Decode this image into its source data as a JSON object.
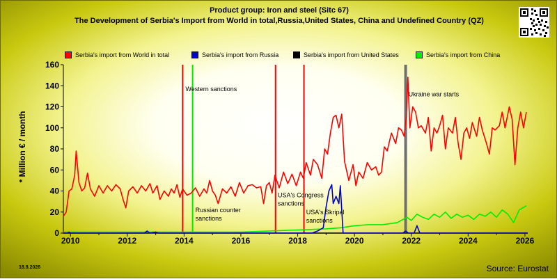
{
  "header": {
    "title_line1": "Product group: Iron and steel (Sitc 67)",
    "title_line2": "The Development of Serbia's Import from World in total,Russia,United States, China and Undefined Country (QZ)"
  },
  "footer": {
    "date": "18.8.2026",
    "source": "Source: Eurostat"
  },
  "qr_icon": "qr-code-icon",
  "chart_data": {
    "type": "line",
    "title": "The Development of Serbia's Import from World in total,Russia,United States, China and Undefined Country (QZ)",
    "xlabel": "",
    "ylabel": "* Million € / month",
    "xlim": [
      2009.75,
      2026.1
    ],
    "ylim": [
      0,
      160
    ],
    "x_ticks": [
      "2010",
      "2012",
      "2014",
      "2016",
      "2018",
      "2020",
      "2022",
      "2024",
      "2026"
    ],
    "y_ticks": [
      "0",
      "20",
      "40",
      "60",
      "80",
      "100",
      "120",
      "140",
      "160"
    ],
    "grid": false,
    "legend_position": "top",
    "series": [
      {
        "name": "Serbia's import from World in total",
        "color": "#ff0000",
        "points": [
          [
            2009.75,
            16
          ],
          [
            2009.85,
            20
          ],
          [
            2009.95,
            40
          ],
          [
            2010.05,
            42
          ],
          [
            2010.15,
            55
          ],
          [
            2010.2,
            78
          ],
          [
            2010.3,
            48
          ],
          [
            2010.4,
            40
          ],
          [
            2010.5,
            43
          ],
          [
            2010.6,
            57
          ],
          [
            2010.7,
            42
          ],
          [
            2010.85,
            35
          ],
          [
            2011.0,
            45
          ],
          [
            2011.15,
            38
          ],
          [
            2011.3,
            45
          ],
          [
            2011.45,
            40
          ],
          [
            2011.6,
            46
          ],
          [
            2011.75,
            42
          ],
          [
            2011.85,
            32
          ],
          [
            2011.95,
            24
          ],
          [
            2012.05,
            40
          ],
          [
            2012.2,
            44
          ],
          [
            2012.35,
            38
          ],
          [
            2012.5,
            45
          ],
          [
            2012.65,
            40
          ],
          [
            2012.8,
            47
          ],
          [
            2012.9,
            38
          ],
          [
            2013.05,
            45
          ],
          [
            2013.15,
            32
          ],
          [
            2013.3,
            40
          ],
          [
            2013.45,
            35
          ],
          [
            2013.55,
            42
          ],
          [
            2013.65,
            38
          ],
          [
            2013.75,
            46
          ],
          [
            2013.85,
            34
          ],
          [
            2013.95,
            42
          ],
          [
            2014.1,
            36
          ],
          [
            2014.25,
            38
          ],
          [
            2014.4,
            43
          ],
          [
            2014.55,
            35
          ],
          [
            2014.7,
            42
          ],
          [
            2014.8,
            38
          ],
          [
            2014.9,
            50
          ],
          [
            2015.0,
            40
          ],
          [
            2015.1,
            36
          ],
          [
            2015.2,
            28
          ],
          [
            2015.35,
            42
          ],
          [
            2015.5,
            38
          ],
          [
            2015.65,
            44
          ],
          [
            2015.8,
            35
          ],
          [
            2015.95,
            48
          ],
          [
            2016.1,
            38
          ],
          [
            2016.25,
            45
          ],
          [
            2016.4,
            46
          ],
          [
            2016.55,
            43
          ],
          [
            2016.7,
            44
          ],
          [
            2016.8,
            28
          ],
          [
            2016.9,
            45
          ],
          [
            2017.0,
            48
          ],
          [
            2017.1,
            38
          ],
          [
            2017.2,
            55
          ],
          [
            2017.35,
            43
          ],
          [
            2017.5,
            58
          ],
          [
            2017.65,
            47
          ],
          [
            2017.8,
            56
          ],
          [
            2017.95,
            45
          ],
          [
            2018.1,
            58
          ],
          [
            2018.2,
            52
          ],
          [
            2018.3,
            67
          ],
          [
            2018.45,
            55
          ],
          [
            2018.55,
            70
          ],
          [
            2018.7,
            65
          ],
          [
            2018.85,
            52
          ],
          [
            2018.95,
            80
          ],
          [
            2019.05,
            75
          ],
          [
            2019.15,
            95
          ],
          [
            2019.25,
            110
          ],
          [
            2019.35,
            112
          ],
          [
            2019.45,
            100
          ],
          [
            2019.55,
            113
          ],
          [
            2019.65,
            68
          ],
          [
            2019.8,
            50
          ],
          [
            2019.95,
            65
          ],
          [
            2020.05,
            45
          ],
          [
            2020.15,
            58
          ],
          [
            2020.3,
            52
          ],
          [
            2020.45,
            67
          ],
          [
            2020.6,
            60
          ],
          [
            2020.75,
            63
          ],
          [
            2020.85,
            55
          ],
          [
            2020.95,
            58
          ],
          [
            2021.05,
            82
          ],
          [
            2021.15,
            78
          ],
          [
            2021.3,
            95
          ],
          [
            2021.45,
            85
          ],
          [
            2021.55,
            100
          ],
          [
            2021.65,
            98
          ],
          [
            2021.75,
            92
          ],
          [
            2021.82,
            110
          ],
          [
            2021.88,
            148
          ],
          [
            2021.95,
            100
          ],
          [
            2022.05,
            120
          ],
          [
            2022.15,
            115
          ],
          [
            2022.25,
            100
          ],
          [
            2022.35,
            102
          ],
          [
            2022.5,
            95
          ],
          [
            2022.6,
            110
          ],
          [
            2022.7,
            78
          ],
          [
            2022.8,
            100
          ],
          [
            2022.9,
            95
          ],
          [
            2023.0,
            102
          ],
          [
            2023.1,
            112
          ],
          [
            2023.2,
            80
          ],
          [
            2023.3,
            100
          ],
          [
            2023.45,
            95
          ],
          [
            2023.55,
            110
          ],
          [
            2023.65,
            85
          ],
          [
            2023.75,
            70
          ],
          [
            2023.85,
            95
          ],
          [
            2023.95,
            100
          ],
          [
            2024.05,
            90
          ],
          [
            2024.15,
            105
          ],
          [
            2024.3,
            92
          ],
          [
            2024.4,
            110
          ],
          [
            2024.5,
            98
          ],
          [
            2024.65,
            85
          ],
          [
            2024.75,
            75
          ],
          [
            2024.85,
            100
          ],
          [
            2024.95,
            98
          ],
          [
            2025.1,
            102
          ],
          [
            2025.2,
            115
          ],
          [
            2025.3,
            100
          ],
          [
            2025.45,
            120
          ],
          [
            2025.55,
            108
          ],
          [
            2025.65,
            65
          ],
          [
            2025.75,
            100
          ],
          [
            2025.85,
            115
          ],
          [
            2025.95,
            100
          ],
          [
            2026.05,
            115
          ]
        ]
      },
      {
        "name": "Serbia's import from Russia",
        "color": "#0000cc",
        "points": [
          [
            2009.75,
            0
          ],
          [
            2009.9,
            0
          ],
          [
            2009.95,
            1
          ],
          [
            2010.0,
            0
          ],
          [
            2012.6,
            0
          ],
          [
            2012.7,
            2
          ],
          [
            2012.8,
            0
          ],
          [
            2013.0,
            1
          ],
          [
            2013.1,
            0
          ],
          [
            2018.5,
            0
          ],
          [
            2018.7,
            2
          ],
          [
            2018.9,
            5
          ],
          [
            2019.0,
            25
          ],
          [
            2019.1,
            40
          ],
          [
            2019.2,
            46
          ],
          [
            2019.25,
            28
          ],
          [
            2019.35,
            35
          ],
          [
            2019.45,
            28
          ],
          [
            2019.5,
            45
          ],
          [
            2019.6,
            0
          ],
          [
            2021.7,
            0
          ],
          [
            2021.8,
            2
          ],
          [
            2021.9,
            0
          ],
          [
            2022.1,
            0
          ],
          [
            2022.2,
            7
          ],
          [
            2022.3,
            0
          ],
          [
            2026.1,
            0
          ]
        ]
      },
      {
        "name": "Serbia's import from United States",
        "color": "#000000",
        "points": [
          [
            2009.75,
            0
          ],
          [
            2026.1,
            0
          ]
        ]
      },
      {
        "name": "Serbia's import from China",
        "color": "#00ee00",
        "points": [
          [
            2009.75,
            1
          ],
          [
            2011.0,
            1
          ],
          [
            2012.5,
            1
          ],
          [
            2014.0,
            1
          ],
          [
            2016.0,
            1
          ],
          [
            2017.0,
            2
          ],
          [
            2018.0,
            3
          ],
          [
            2019.0,
            4
          ],
          [
            2019.5,
            5
          ],
          [
            2020.0,
            7
          ],
          [
            2020.5,
            8
          ],
          [
            2021.0,
            8
          ],
          [
            2021.5,
            10
          ],
          [
            2021.85,
            15
          ],
          [
            2022.0,
            12
          ],
          [
            2022.2,
            18
          ],
          [
            2022.4,
            15
          ],
          [
            2022.6,
            13
          ],
          [
            2022.8,
            18
          ],
          [
            2023.0,
            15
          ],
          [
            2023.2,
            20
          ],
          [
            2023.4,
            14
          ],
          [
            2023.6,
            18
          ],
          [
            2023.8,
            15
          ],
          [
            2024.0,
            17
          ],
          [
            2024.2,
            13
          ],
          [
            2024.4,
            18
          ],
          [
            2024.6,
            16
          ],
          [
            2024.8,
            20
          ],
          [
            2025.0,
            15
          ],
          [
            2025.2,
            22
          ],
          [
            2025.4,
            18
          ],
          [
            2025.6,
            10
          ],
          [
            2025.8,
            22
          ],
          [
            2026.05,
            26
          ]
        ]
      }
    ],
    "vertical_markers": [
      {
        "x": 2013.95,
        "color": "#ff0000",
        "label": ""
      },
      {
        "x": 2014.3,
        "color": "#00ee00",
        "label": ""
      },
      {
        "x": 2017.22,
        "color": "#ff0000",
        "label": ""
      },
      {
        "x": 2018.22,
        "color": "#ff0000",
        "label": ""
      },
      {
        "x": 2021.8,
        "color": "#707070",
        "label": ""
      }
    ],
    "annotations": [
      {
        "text": "Western sanctions",
        "x": 2014.0,
        "y": 135
      },
      {
        "text": "Russian counter",
        "x": 2014.35,
        "y": 20
      },
      {
        "text": "sanctions",
        "x": 2014.35,
        "y": 12
      },
      {
        "text": "USA's Congress",
        "x": 2017.25,
        "y": 34
      },
      {
        "text": "sanctions",
        "x": 2017.25,
        "y": 26
      },
      {
        "text": "USA's Skripal",
        "x": 2018.25,
        "y": 18
      },
      {
        "text": "sanctions",
        "x": 2018.25,
        "y": 10
      },
      {
        "text": "Ukraine war starts",
        "x": 2021.85,
        "y": 130
      }
    ]
  }
}
